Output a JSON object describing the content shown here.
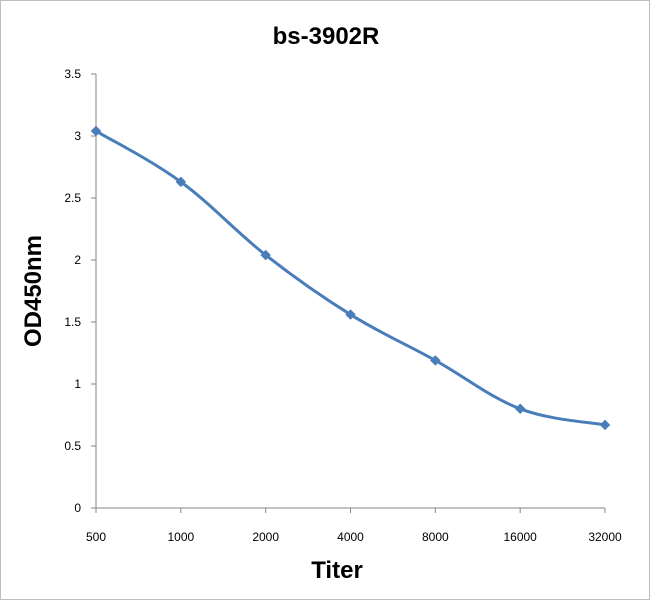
{
  "chart_data": {
    "type": "line",
    "title": "bs-3902R",
    "xlabel": "Titer",
    "ylabel": "OD450nm",
    "categories": [
      "500",
      "1000",
      "2000",
      "4000",
      "8000",
      "16000",
      "32000"
    ],
    "series": [
      {
        "values": [
          3.04,
          2.63,
          2.04,
          1.56,
          1.19,
          0.8,
          0.67
        ]
      }
    ],
    "ylim": [
      0,
      3.5
    ],
    "yticks": [
      "0",
      "0.5",
      "1",
      "1.5",
      "2",
      "2.5",
      "3",
      "3.5"
    ],
    "grid": false,
    "legend": "none",
    "colors": {
      "series": "#4a7ebb",
      "axis": "#868686",
      "text": "#000000"
    }
  }
}
